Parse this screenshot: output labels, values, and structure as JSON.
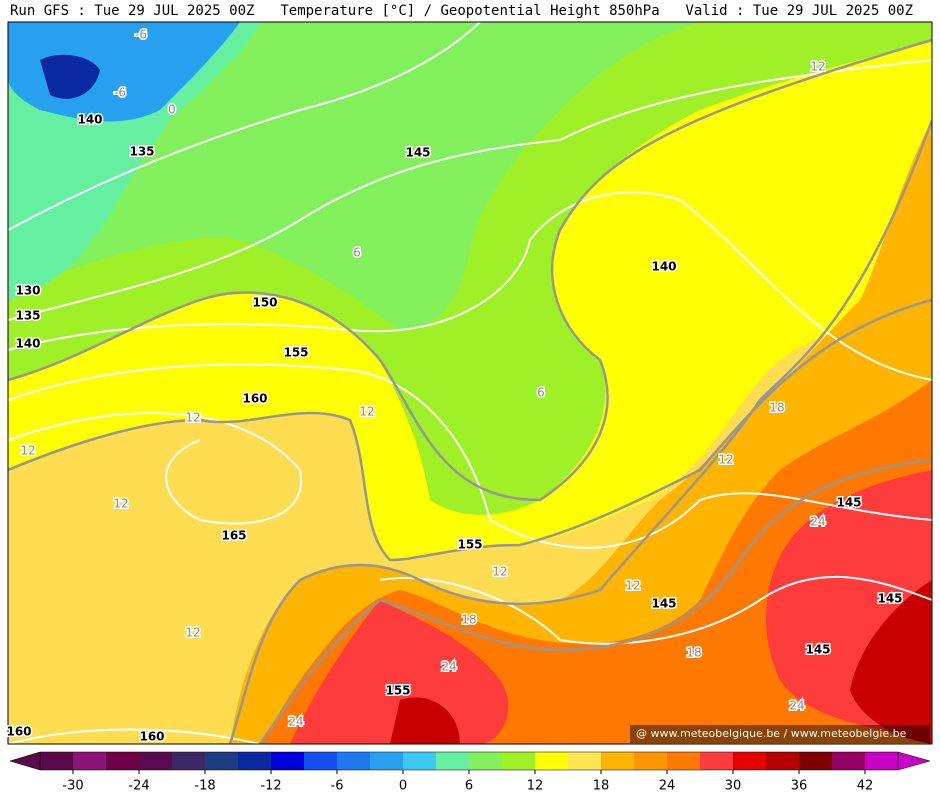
{
  "header": {
    "run": "Run GFS : Tue 29 JUL 2025 00Z",
    "title": "Temperature [°C] / Geopotential Height 850hPa",
    "valid": "Valid : Tue 29 JUL 2025 00Z"
  },
  "footer": {
    "credit": "@ www.meteobelgique.be / www.meteobelgie.be"
  },
  "contour_labels": [
    "-6",
    "-6",
    "0",
    "140",
    "135",
    "145",
    "12",
    "6",
    "130",
    "135",
    "140",
    "150",
    "155",
    "160",
    "12",
    "12",
    "140",
    "6",
    "18",
    "12",
    "12",
    "12",
    "145",
    "24",
    "165",
    "155",
    "12",
    "12",
    "145",
    "145",
    "18",
    "12",
    "145",
    "18",
    "24",
    "155",
    "24",
    "24",
    "160",
    "160"
  ],
  "colorbar": {
    "range": [
      -33,
      45
    ],
    "colors": [
      "#5a0a4a",
      "#8c1478",
      "#6e0046",
      "#5a0a50",
      "#3c2864",
      "#1e3c82",
      "#0a28a0",
      "#0000dc",
      "#1450f0",
      "#1e78f0",
      "#28a0f0",
      "#3cc8f0",
      "#64f0a0",
      "#82f05a",
      "#a0f028",
      "#ffff00",
      "#ffe650",
      "#ffb400",
      "#ff9600",
      "#ff7800",
      "#ff3c3c",
      "#e60000",
      "#b40000",
      "#800000",
      "#960064",
      "#c800c8"
    ],
    "ticks": [
      -30,
      -24,
      -18,
      -12,
      -6,
      0,
      6,
      12,
      18,
      24,
      30,
      36,
      42
    ]
  }
}
